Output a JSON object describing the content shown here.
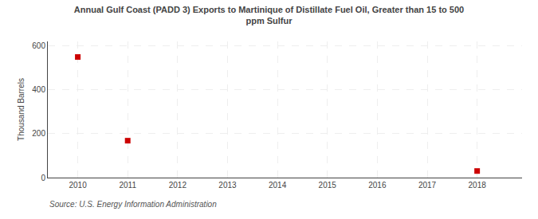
{
  "chart_data": {
    "type": "scatter",
    "title": "Annual Gulf Coast (PADD 3) Exports to Martinique of Distillate Fuel Oil, Greater than 15 to 500\nppm Sulfur",
    "ylabel": "Thousand Barrels",
    "annotations": [
      "Source: U.S. Energy Information Administration"
    ],
    "x": [
      2010,
      2011,
      2018
    ],
    "values": [
      549,
      168,
      30
    ],
    "xlim": [
      2009.4,
      2018.9
    ],
    "xticks": [
      2010,
      2011,
      2012,
      2013,
      2014,
      2015,
      2016,
      2017,
      2018
    ],
    "ylim": [
      0,
      620
    ],
    "yticks": [
      0,
      200,
      400,
      600
    ],
    "color": "#cc0000",
    "marker": "square",
    "grid": true
  }
}
